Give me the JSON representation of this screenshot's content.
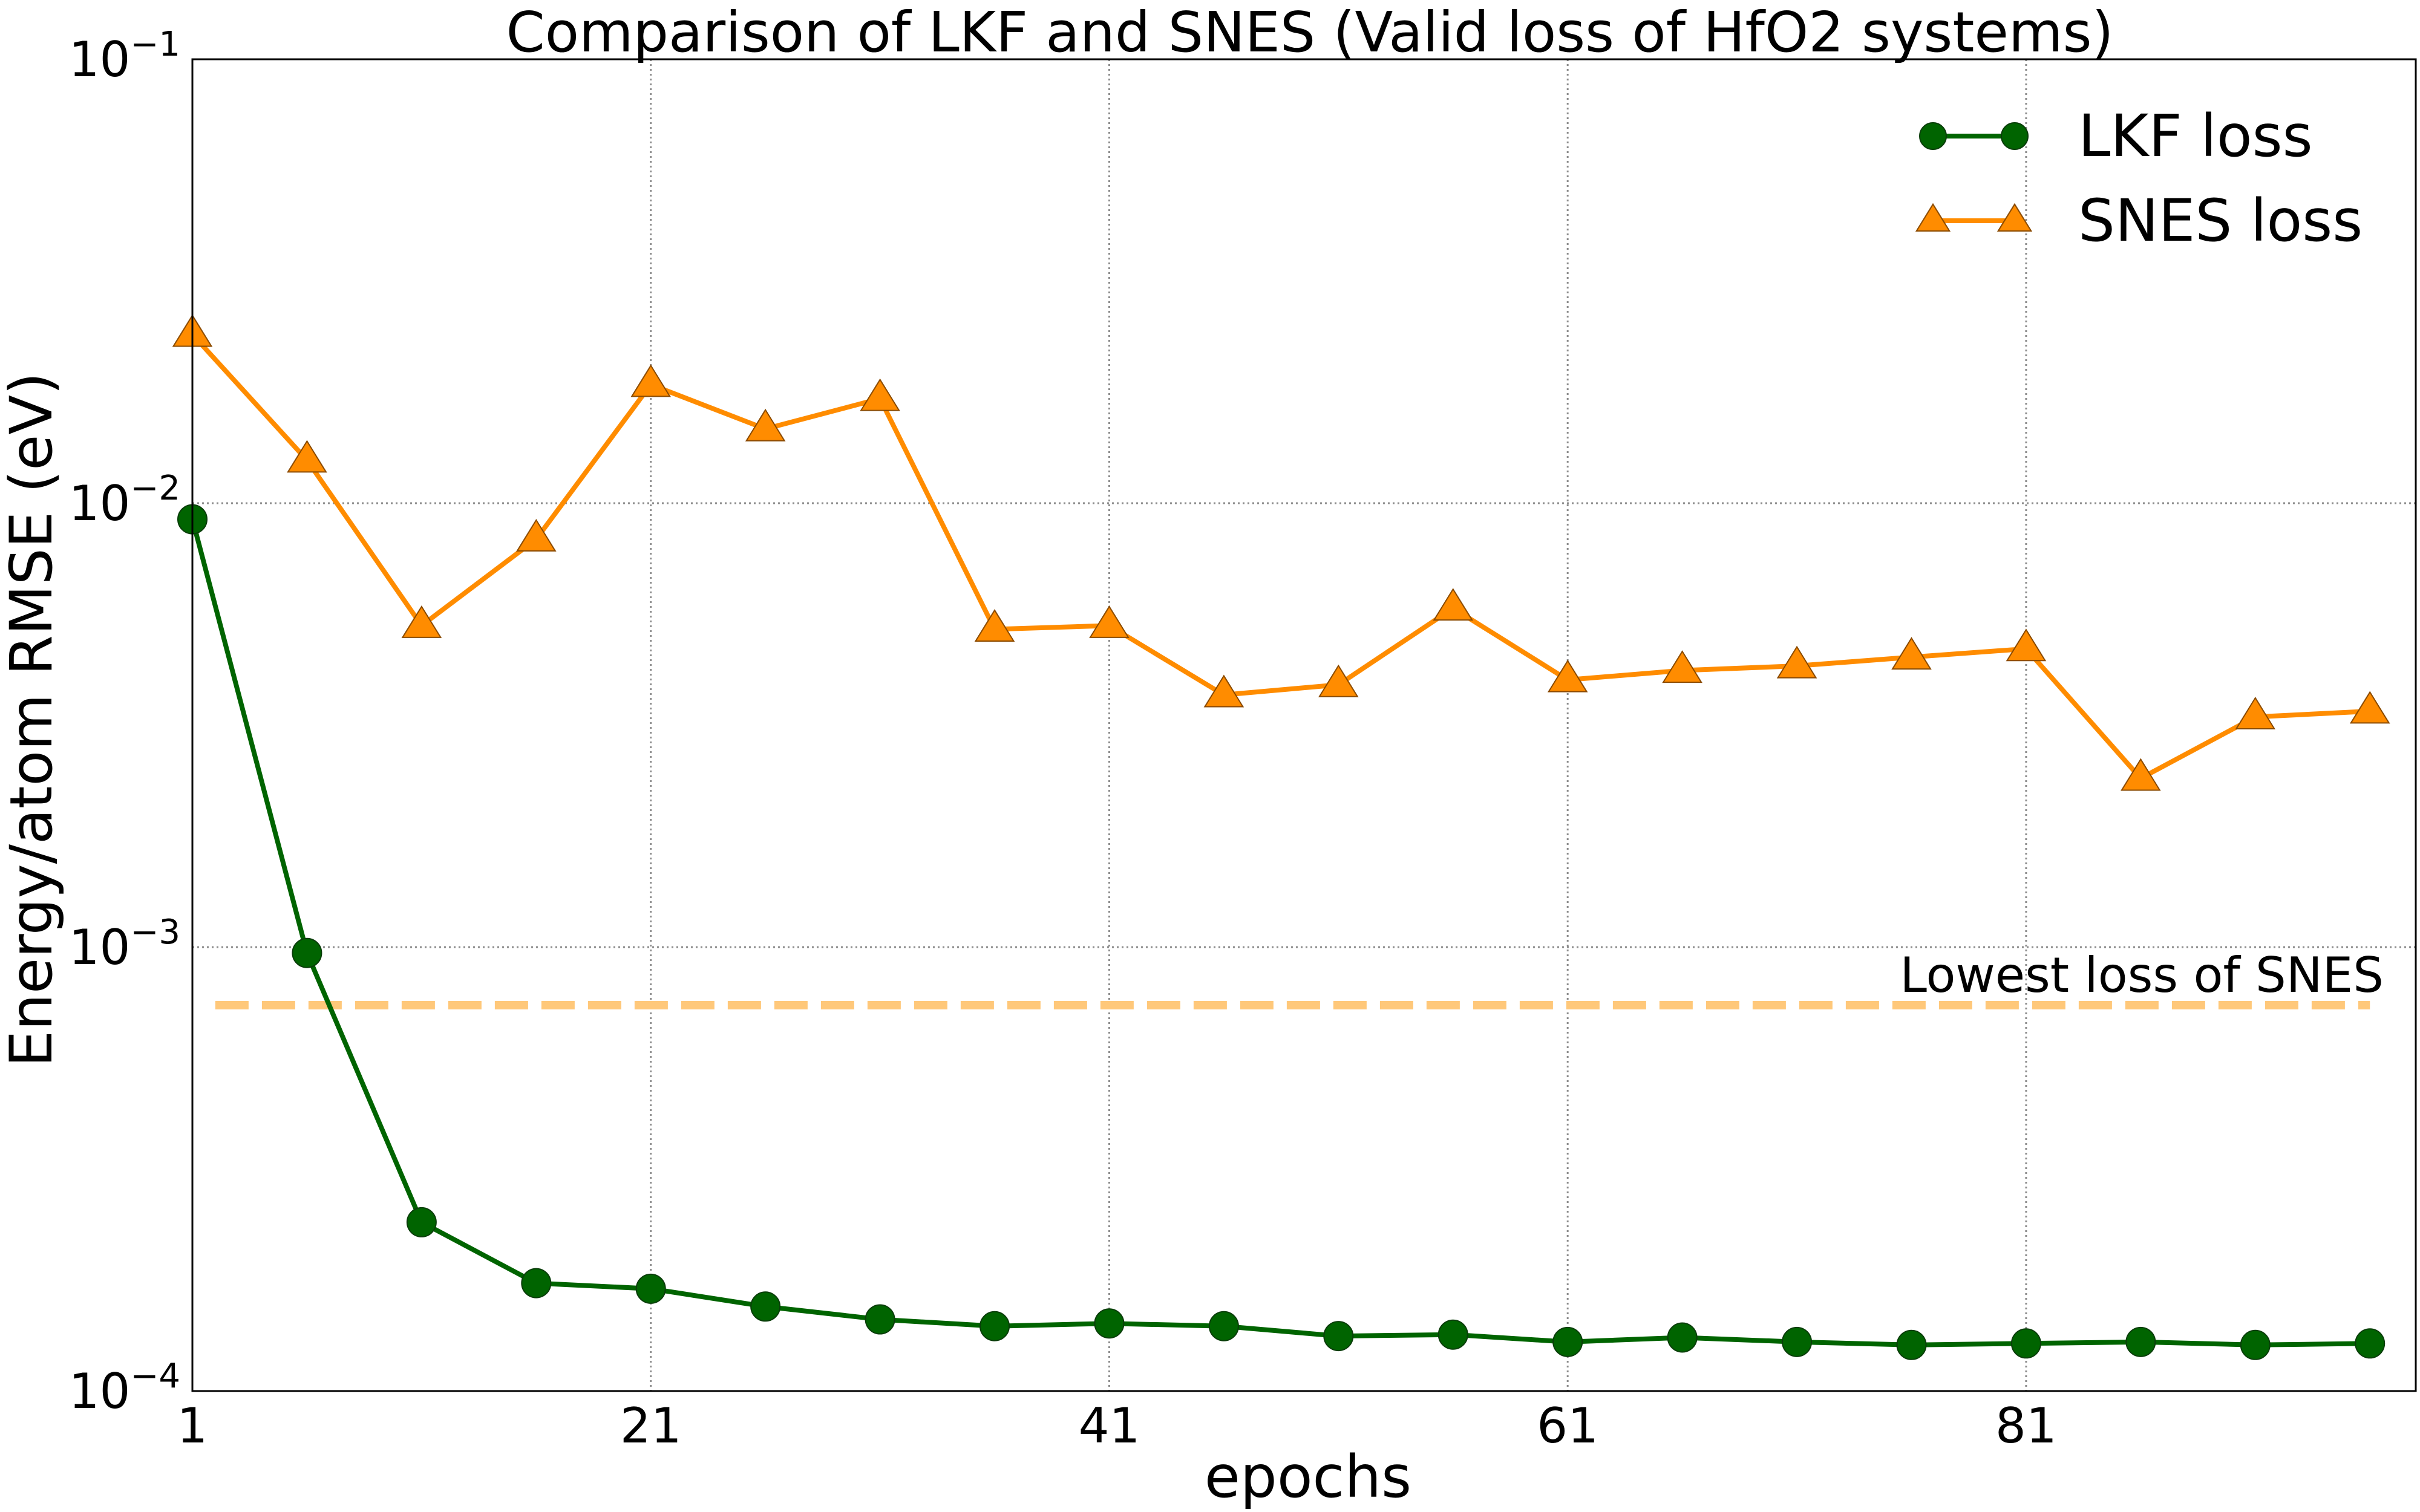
{
  "chart_data": {
    "type": "line",
    "title": "Comparison of LKF and SNES (Valid loss of HfO2 systems)",
    "xlabel": "epochs",
    "ylabel": "Energy/atom RMSE (eV)",
    "yscale": "log",
    "xlim": [
      1,
      98
    ],
    "ylim": [
      0.0001,
      0.1
    ],
    "grid": true,
    "legend_position": "top-right",
    "x_ticks": [
      1,
      21,
      41,
      61,
      81
    ],
    "y_ticks": [
      {
        "value": 0.0001,
        "base": "10",
        "exp": "−4"
      },
      {
        "value": 0.001,
        "base": "10",
        "exp": "−3"
      },
      {
        "value": 0.01,
        "base": "10",
        "exp": "−2"
      },
      {
        "value": 0.1,
        "base": "10",
        "exp": "−1"
      }
    ],
    "x": [
      1,
      6,
      11,
      16,
      21,
      26,
      31,
      36,
      41,
      46,
      51,
      56,
      61,
      66,
      71,
      76,
      81,
      86,
      91,
      96
    ],
    "series": [
      {
        "name": "LKF loss",
        "color": "#006400",
        "marker": "circle",
        "values": [
          0.0092,
          0.00097,
          0.00024,
          0.000175,
          0.00017,
          0.000155,
          0.000145,
          0.00014,
          0.000142,
          0.00014,
          0.000133,
          0.000134,
          0.000129,
          0.000132,
          0.000129,
          0.000127,
          0.000128,
          0.000129,
          0.000127,
          0.000128
        ]
      },
      {
        "name": "SNES loss",
        "color": "#ff8c00",
        "marker": "triangle",
        "values": [
          0.024,
          0.0125,
          0.0053,
          0.0083,
          0.0185,
          0.0147,
          0.0172,
          0.0052,
          0.0053,
          0.0037,
          0.0039,
          0.0058,
          0.004,
          0.0042,
          0.0043,
          0.0045,
          0.0047,
          0.0024,
          0.0033,
          0.0034
        ]
      }
    ],
    "reference_line": {
      "label": "Lowest loss of SNES",
      "value": 0.00074,
      "color": "#ffc87a",
      "style": "dashed"
    }
  }
}
